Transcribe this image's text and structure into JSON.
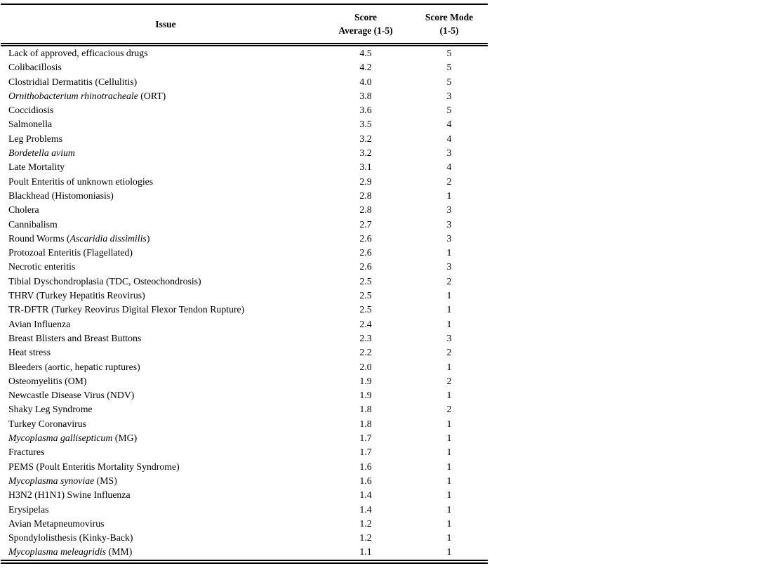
{
  "colors": {
    "background": "#ffffff",
    "text": "#000000",
    "rule": "#000000"
  },
  "table": {
    "headers": {
      "issue": "Issue",
      "score_average": "Score\nAverage (1-5)",
      "score_mode": "Score Mode\n(1-5)"
    },
    "rows": [
      {
        "issue": [
          {
            "t": "Lack of approved, efficacious drugs"
          }
        ],
        "avg": "4.5",
        "mode": "5"
      },
      {
        "issue": [
          {
            "t": "Colibacillosis"
          }
        ],
        "avg": "4.2",
        "mode": "5"
      },
      {
        "issue": [
          {
            "t": "Clostridial Dermatitis (Cellulitis)"
          }
        ],
        "avg": "4.0",
        "mode": "5"
      },
      {
        "issue": [
          {
            "t": "Ornithobacterium rhinotracheale",
            "i": true
          },
          {
            "t": " (ORT)"
          }
        ],
        "avg": "3.8",
        "mode": "3"
      },
      {
        "issue": [
          {
            "t": "Coccidiosis"
          }
        ],
        "avg": "3.6",
        "mode": "5"
      },
      {
        "issue": [
          {
            "t": "Salmonella"
          }
        ],
        "avg": "3.5",
        "mode": "4"
      },
      {
        "issue": [
          {
            "t": "Leg Problems"
          }
        ],
        "avg": "3.2",
        "mode": "4"
      },
      {
        "issue": [
          {
            "t": "Bordetella avium",
            "i": true
          }
        ],
        "avg": "3.2",
        "mode": "3"
      },
      {
        "issue": [
          {
            "t": "Late Mortality"
          }
        ],
        "avg": "3.1",
        "mode": "4"
      },
      {
        "issue": [
          {
            "t": "Poult Enteritis of unknown etiologies"
          }
        ],
        "avg": "2.9",
        "mode": "2"
      },
      {
        "issue": [
          {
            "t": "Blackhead (Histomoniasis)"
          }
        ],
        "avg": "2.8",
        "mode": "1"
      },
      {
        "issue": [
          {
            "t": "Cholera"
          }
        ],
        "avg": "2.8",
        "mode": "3"
      },
      {
        "issue": [
          {
            "t": "Cannibalism"
          }
        ],
        "avg": "2.7",
        "mode": "3"
      },
      {
        "issue": [
          {
            "t": "Round Worms ("
          },
          {
            "t": "Ascaridia dissimilis",
            "i": true
          },
          {
            "t": ")"
          }
        ],
        "avg": "2.6",
        "mode": "3"
      },
      {
        "issue": [
          {
            "t": "Protozoal Enteritis (Flagellated)"
          }
        ],
        "avg": "2.6",
        "mode": "1"
      },
      {
        "issue": [
          {
            "t": "Necrotic enteritis"
          }
        ],
        "avg": "2.6",
        "mode": "3"
      },
      {
        "issue": [
          {
            "t": "Tibial Dyschondroplasia (TDC, Osteochondrosis)"
          }
        ],
        "avg": "2.5",
        "mode": "2"
      },
      {
        "issue": [
          {
            "t": "THRV (Turkey Hepatitis Reovirus)"
          }
        ],
        "avg": "2.5",
        "mode": "1"
      },
      {
        "issue": [
          {
            "t": "TR-DFTR (Turkey Reovirus Digital Flexor Tendon Rupture)"
          }
        ],
        "avg": "2.5",
        "mode": "1"
      },
      {
        "issue": [
          {
            "t": "Avian Influenza"
          }
        ],
        "avg": "2.4",
        "mode": "1"
      },
      {
        "issue": [
          {
            "t": "Breast Blisters and Breast Buttons"
          }
        ],
        "avg": "2.3",
        "mode": "3"
      },
      {
        "issue": [
          {
            "t": "Heat stress"
          }
        ],
        "avg": "2.2",
        "mode": "2"
      },
      {
        "issue": [
          {
            "t": "Bleeders (aortic, hepatic ruptures)"
          }
        ],
        "avg": "2.0",
        "mode": "1"
      },
      {
        "issue": [
          {
            "t": "Osteomyelitis (OM)"
          }
        ],
        "avg": "1.9",
        "mode": "2"
      },
      {
        "issue": [
          {
            "t": "Newcastle Disease Virus (NDV)"
          }
        ],
        "avg": "1.9",
        "mode": "1"
      },
      {
        "issue": [
          {
            "t": "Shaky Leg Syndrome"
          }
        ],
        "avg": "1.8",
        "mode": "2"
      },
      {
        "issue": [
          {
            "t": "Turkey Coronavirus"
          }
        ],
        "avg": "1.8",
        "mode": "1"
      },
      {
        "issue": [
          {
            "t": "Mycoplasma gallisepticum",
            "i": true
          },
          {
            "t": " (MG)"
          }
        ],
        "avg": "1.7",
        "mode": "1"
      },
      {
        "issue": [
          {
            "t": "Fractures"
          }
        ],
        "avg": "1.7",
        "mode": "1"
      },
      {
        "issue": [
          {
            "t": "PEMS (Poult Enteritis Mortality Syndrome)"
          }
        ],
        "avg": "1.6",
        "mode": "1"
      },
      {
        "issue": [
          {
            "t": "Mycoplasma synoviae",
            "i": true
          },
          {
            "t": " (MS)"
          }
        ],
        "avg": "1.6",
        "mode": "1"
      },
      {
        "issue": [
          {
            "t": "H3N2 (H1N1) Swine Influenza"
          }
        ],
        "avg": "1.4",
        "mode": "1"
      },
      {
        "issue": [
          {
            "t": "Erysipelas"
          }
        ],
        "avg": "1.4",
        "mode": "1"
      },
      {
        "issue": [
          {
            "t": "Avian Metapneumovirus"
          }
        ],
        "avg": "1.2",
        "mode": "1"
      },
      {
        "issue": [
          {
            "t": "Spondylolisthesis (Kinky-Back)"
          }
        ],
        "avg": "1.2",
        "mode": "1"
      },
      {
        "issue": [
          {
            "t": "Mycoplasma meleagridis",
            "i": true
          },
          {
            "t": " (MM)"
          }
        ],
        "avg": "1.1",
        "mode": "1"
      }
    ]
  }
}
